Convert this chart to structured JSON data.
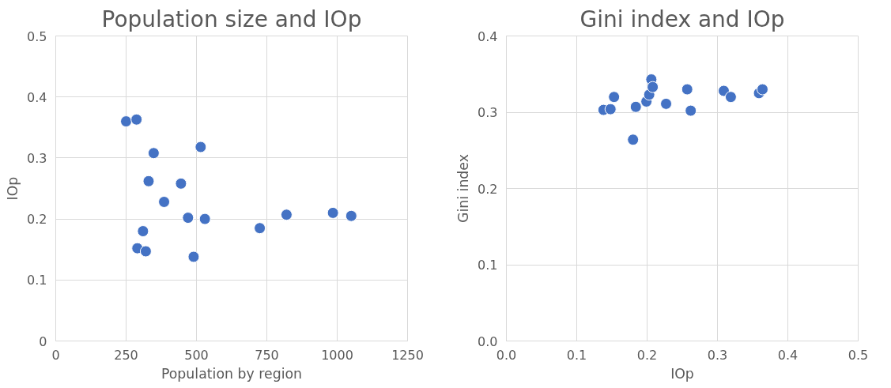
{
  "chart_data": [
    {
      "type": "scatter",
      "title": "Population size and IOp",
      "xlabel": "Population by region",
      "ylabel": "IOp",
      "x": [
        250,
        287,
        348,
        515,
        330,
        445,
        385,
        470,
        530,
        310,
        290,
        320,
        490,
        725,
        820,
        985,
        1050
      ],
      "series": [
        {
          "color": "#4472c4",
          "values": [
            0.36,
            0.363,
            0.308,
            0.318,
            0.262,
            0.258,
            0.228,
            0.202,
            0.2,
            0.18,
            0.152,
            0.147,
            0.138,
            0.185,
            0.207,
            0.21,
            0.205
          ]
        }
      ],
      "xlim": [
        0,
        1250
      ],
      "xticks": [
        0,
        250,
        500,
        750,
        1000,
        1250
      ],
      "ylim": [
        0,
        0.5
      ],
      "yticks": [
        0,
        0.1,
        0.2,
        0.3,
        0.4,
        0.5
      ],
      "grid": true,
      "marker": "circle"
    },
    {
      "type": "scatter",
      "title": "Gini index and IOp",
      "xlabel": "IOp",
      "ylabel": "Gini index",
      "x": [
        0.138,
        0.148,
        0.153,
        0.18,
        0.184,
        0.199,
        0.203,
        0.206,
        0.208,
        0.227,
        0.257,
        0.262,
        0.309,
        0.319,
        0.359,
        0.364
      ],
      "series": [
        {
          "color": "#4472c4",
          "values": [
            0.303,
            0.304,
            0.32,
            0.264,
            0.307,
            0.314,
            0.323,
            0.343,
            0.333,
            0.311,
            0.33,
            0.302,
            0.328,
            0.32,
            0.325,
            0.33
          ]
        }
      ],
      "xlim": [
        0,
        0.5
      ],
      "xticks": [
        {
          "value": 0,
          "label": "0.0"
        },
        0.1,
        0.2,
        0.3,
        0.4,
        0.5
      ],
      "ylim": [
        0,
        0.4
      ],
      "yticks": [
        {
          "value": 0,
          "label": "0.0"
        },
        0.1,
        0.2,
        0.3,
        0.4
      ],
      "grid": true,
      "marker": "circle"
    }
  ]
}
